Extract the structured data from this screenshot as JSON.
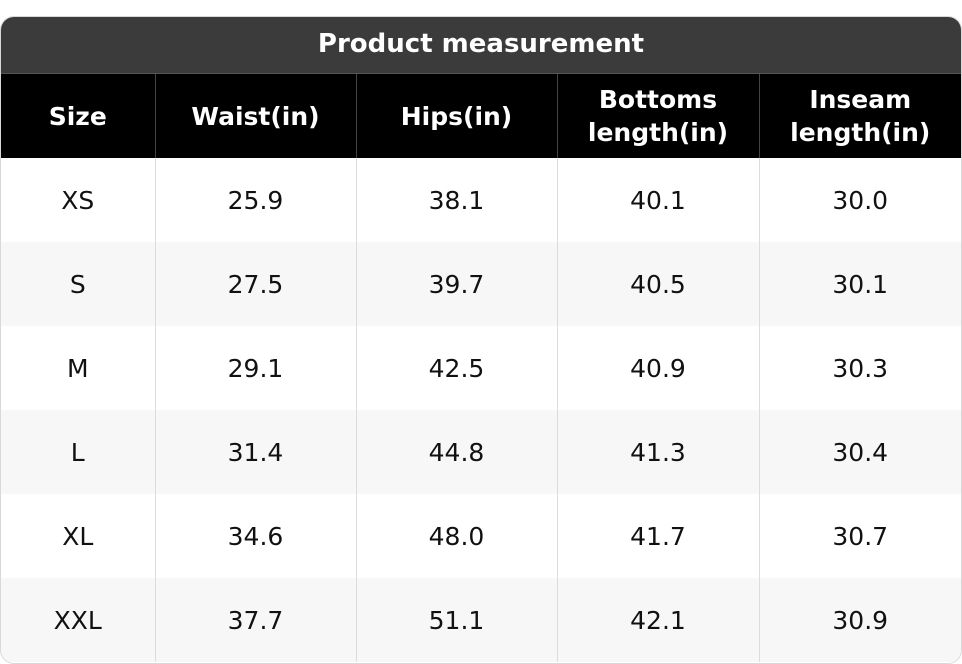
{
  "table": {
    "title": "Product measurement",
    "header": [
      "Size",
      "Waist(in)",
      "Hips(in)",
      "Bottoms length(in)",
      "Inseam length(in)"
    ],
    "rows": [
      [
        "XS",
        "25.9",
        "38.1",
        "40.1",
        "30.0"
      ],
      [
        "S",
        "27.5",
        "39.7",
        "40.5",
        "30.1"
      ],
      [
        "M",
        "29.1",
        "42.5",
        "40.9",
        "30.3"
      ],
      [
        "L",
        "31.4",
        "44.8",
        "41.3",
        "30.4"
      ],
      [
        "XL",
        "34.6",
        "48.0",
        "41.7",
        "30.7"
      ],
      [
        "XXL",
        "37.7",
        "51.1",
        "42.1",
        "30.9"
      ]
    ]
  }
}
